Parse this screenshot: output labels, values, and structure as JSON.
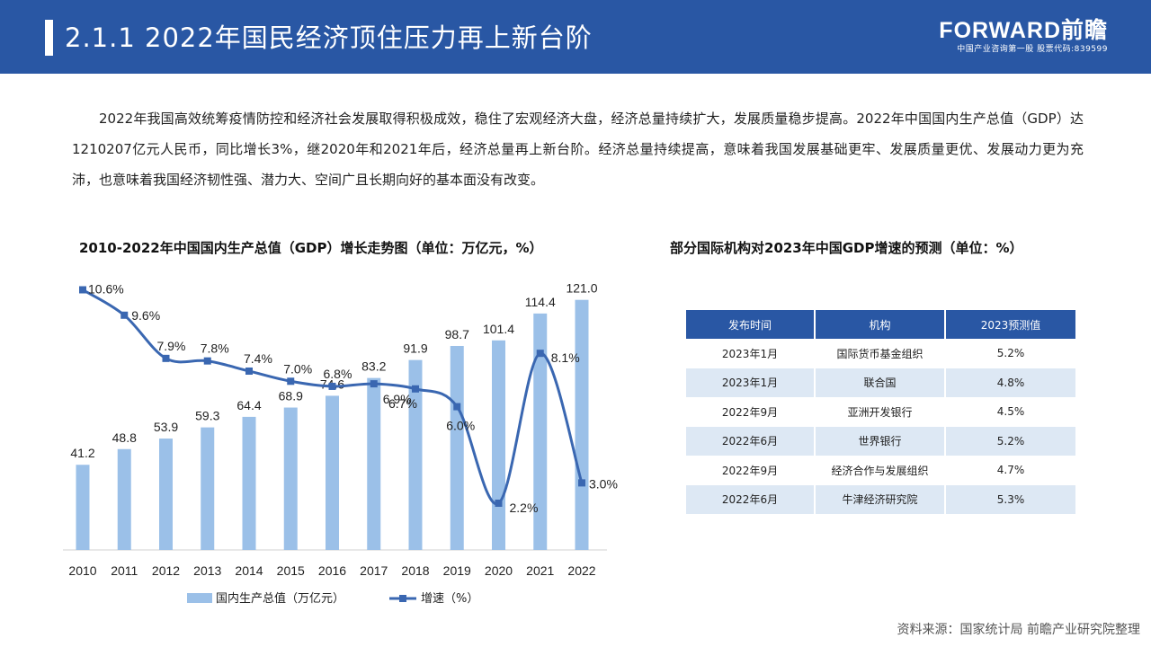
{
  "header": {
    "title": "2.1.1 2022年国民经济顶住压力再上新台阶",
    "brand_name": "FORWARD前瞻",
    "brand_sub": "中国产业咨询第一股 股票代码:839599"
  },
  "intro": "2022年我国高效统筹疫情防控和经济社会发展取得积极成效，稳住了宏观经济大盘，经济总量持续扩大，发展质量稳步提高。2022年中国国内生产总值（GDP）达1210207亿元人民币，同比增长3%，继2020年和2021年后，经济总量再上新台阶。经济总量持续提高，意味着我国发展基础更牢、发展质量更优、发展动力更为充沛，也意味着我国经济韧性强、潜力大、空间广且长期向好的基本面没有改变。",
  "chart_data": [
    {
      "type": "bar+line",
      "title": "2010-2022年中国国内生产总值（GDP）增长走势图（单位：万亿元，%）",
      "categories": [
        "2010",
        "2011",
        "2012",
        "2013",
        "2014",
        "2015",
        "2016",
        "2017",
        "2018",
        "2019",
        "2020",
        "2021",
        "2022"
      ],
      "series": [
        {
          "name": "国内生产总值（万亿元）",
          "type": "bar",
          "color": "#9bc0e8",
          "values": [
            41.2,
            48.8,
            53.9,
            59.3,
            64.4,
            68.9,
            74.6,
            83.2,
            91.9,
            98.7,
            101.4,
            114.4,
            121.0
          ],
          "labels": [
            "41.2",
            "48.8",
            "53.9",
            "59.3",
            "64.4",
            "68.9",
            "74.6",
            "83.2",
            "91.9",
            "98.7",
            "101.4",
            "114.4",
            "121.0"
          ]
        },
        {
          "name": "增速（%）",
          "type": "line",
          "color": "#3a67b1",
          "values": [
            10.6,
            9.6,
            7.9,
            7.8,
            7.4,
            7.0,
            6.8,
            6.9,
            6.7,
            6.0,
            2.2,
            8.1,
            3.0
          ],
          "labels": [
            "10.6%",
            "9.6%",
            "7.9%",
            "7.8%",
            "7.4%",
            "7.0%",
            "6.8%",
            "6.9%",
            "6.7%",
            "6.0%",
            "2.2%",
            "8.1%",
            "3.0%"
          ]
        }
      ],
      "legend": [
        "国内生产总值（万亿元）",
        "增速（%）"
      ],
      "bar_ylim": [
        0,
        130
      ],
      "line_ylim": [
        0,
        14
      ],
      "legend_position": "bottom"
    },
    {
      "type": "table",
      "title": "部分国际机构对2023年中国GDP增速的预测（单位：%）",
      "columns": [
        "发布时间",
        "机构",
        "2023预测值"
      ],
      "rows": [
        [
          "2023年1月",
          "国际货币基金组织",
          "5.2%"
        ],
        [
          "2023年1月",
          "联合国",
          "4.8%"
        ],
        [
          "2022年9月",
          "亚洲开发银行",
          "4.5%"
        ],
        [
          "2022年6月",
          "世界银行",
          "5.2%"
        ],
        [
          "2022年9月",
          "经济合作与发展组织",
          "4.7%"
        ],
        [
          "2022年6月",
          "牛津经济研究院",
          "5.3%"
        ]
      ]
    }
  ],
  "source": "资料来源：国家统计局 前瞻产业研究院整理"
}
